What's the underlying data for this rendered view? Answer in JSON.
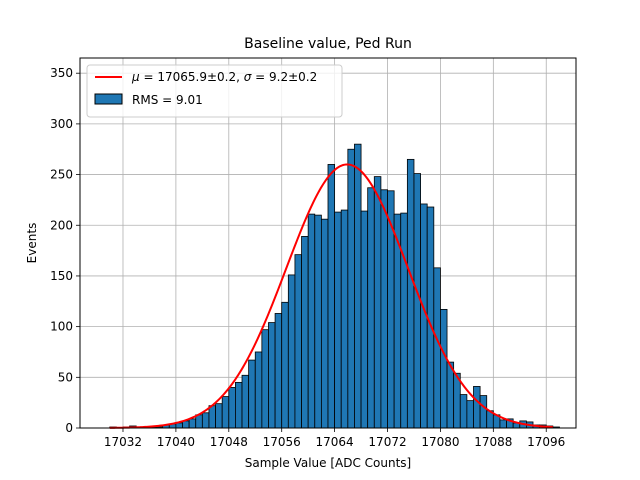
{
  "chart_data": {
    "type": "bar",
    "title": "Baseline value, Ped Run",
    "xlabel": "Sample Value [ADC Counts]",
    "ylabel": "Events",
    "xlim": [
      17025.5,
      17100.5
    ],
    "ylim": [
      0,
      365
    ],
    "xticks": [
      17032,
      17040,
      17048,
      17056,
      17064,
      17072,
      17080,
      17088,
      17096
    ],
    "yticks": [
      0,
      50,
      100,
      150,
      200,
      250,
      300,
      350
    ],
    "grid": true,
    "legend_position": "top-left",
    "bin_width": 1,
    "bin_start": 17030,
    "histogram_values": [
      1,
      0,
      1,
      2,
      1,
      1,
      1,
      1,
      3,
      4,
      5,
      7,
      9,
      13,
      15,
      22,
      24,
      31,
      40,
      45,
      52,
      67,
      75,
      97,
      104,
      113,
      124,
      151,
      171,
      189,
      211,
      210,
      206,
      260,
      213,
      215,
      275,
      280,
      214,
      237,
      248,
      235,
      234,
      211,
      212,
      265,
      251,
      221,
      218,
      158,
      117,
      65,
      54,
      33,
      27,
      41,
      32,
      17,
      13,
      8,
      9,
      5,
      7,
      6,
      3,
      3,
      2,
      1,
      0
    ],
    "fit": {
      "mu": 17065.9,
      "sigma": 9.2,
      "amplitude": 260,
      "x_range": [
        17030,
        17097
      ],
      "label_mu": "17065.9±0.2",
      "label_sigma": "9.2±0.2"
    },
    "series": [
      {
        "name": "RMS = 9.01",
        "kind": "histogram",
        "color": "#1f77b4",
        "edge": "#000000"
      },
      {
        "name": "μ = 17065.9±0.2, σ = 9.2±0.2",
        "kind": "line",
        "color": "#ff0000"
      }
    ]
  },
  "legend": {
    "fit_mu_symbol": "μ",
    "fit_mu_value": " = 17065.9±0.2, ",
    "fit_sigma_symbol": "σ",
    "fit_sigma_value": " = 9.2±0.2",
    "hist_label": "RMS = 9.01"
  }
}
